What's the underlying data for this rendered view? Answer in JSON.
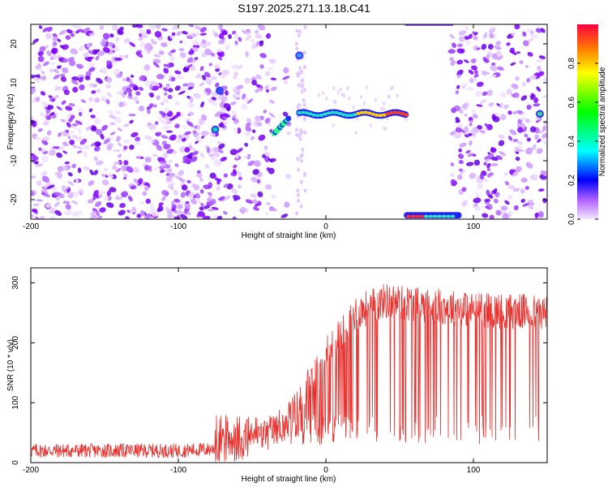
{
  "title": "S197.2025.271.13.18.C41",
  "chart_data": [
    {
      "type": "heatmap",
      "xlabel": "Height of straight line (km)",
      "ylabel": "Frequency (Hz)",
      "xlim": [
        -200,
        150
      ],
      "ylim": [
        -25,
        25
      ],
      "x_ticks": [
        "-200",
        "-100",
        "0",
        "100"
      ],
      "y_ticks": [
        "-20",
        "-10",
        "0",
        "10",
        "20"
      ],
      "colorbar": {
        "label": "Normalized spectral amplitude",
        "range": [
          0,
          1
        ],
        "ticks": [
          "0.0",
          "0.2",
          "0.4",
          "0.6",
          "0.8"
        ]
      },
      "features": [
        {
          "name": "stripe",
          "x": [
            -18,
            55
          ],
          "freq_hz": 2,
          "amplitude": 0.9
        },
        {
          "name": "diagonal",
          "x": [
            -35,
            -25
          ],
          "freq_hz": [
            -3,
            1
          ],
          "amplitude": 0.35
        },
        {
          "name": "blob",
          "x": -75,
          "freq_hz": -2,
          "amplitude": 0.3
        },
        {
          "name": "blob",
          "x": -18,
          "freq_hz": 17,
          "amplitude": 0.3
        },
        {
          "name": "bottom-stripe",
          "x": [
            55,
            90
          ],
          "freq_hz": -24,
          "amplitude": 0.9
        },
        {
          "name": "edge-blob",
          "x": 145,
          "freq_hz": 2,
          "amplitude": 0.4
        }
      ]
    },
    {
      "type": "line",
      "xlabel": "Height of straight line (km)",
      "ylabel": "SNR (10 * v/v)",
      "xlim": [
        -200,
        150
      ],
      "ylim": [
        0,
        325
      ],
      "x_ticks": [
        "-200",
        "-100",
        "0",
        "100"
      ],
      "y_ticks": [
        "0",
        "100",
        "200",
        "300"
      ],
      "color": "#e8322f",
      "series": [
        {
          "name": "SNR",
          "x": [
            -200,
            -150,
            -100,
            -80,
            -60,
            -40,
            -20,
            0,
            20,
            40,
            60,
            100,
            150
          ],
          "base": [
            20,
            20,
            20,
            22,
            30,
            45,
            90,
            180,
            250,
            270,
            265,
            255,
            250
          ]
        }
      ]
    }
  ]
}
